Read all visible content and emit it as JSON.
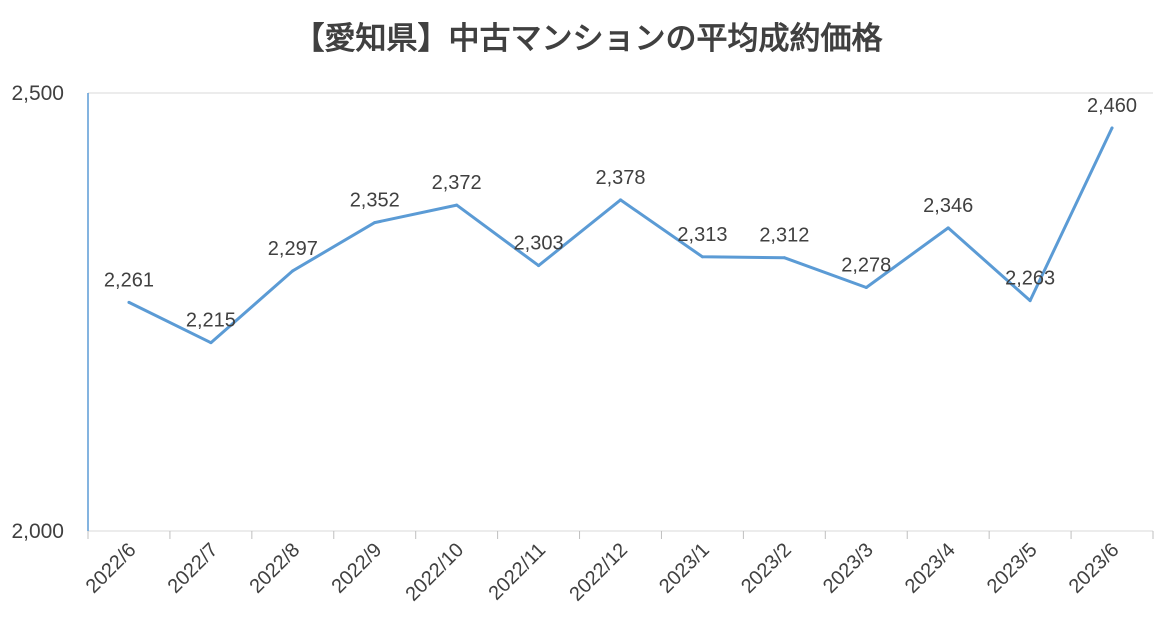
{
  "colors": {
    "series_line": "#5B9BD5",
    "axis_line": "#5B9BD5",
    "gridline": "#D9D9D9",
    "tick_mark": "#BFBFBF",
    "text": "#404040"
  },
  "chart_data": {
    "type": "line",
    "title": "【愛知県】中古マンションの平均成約価格",
    "xlabel": "",
    "ylabel": "",
    "categories": [
      "2022/6",
      "2022/7",
      "2022/8",
      "2022/9",
      "2022/10",
      "2022/11",
      "2022/12",
      "2023/1",
      "2023/2",
      "2023/3",
      "2023/4",
      "2023/5",
      "2023/6"
    ],
    "series": [
      {
        "values": [
          2261,
          2215,
          2297,
          2352,
          2372,
          2303,
          2378,
          2313,
          2312,
          2278,
          2346,
          2263,
          2460
        ]
      }
    ],
    "data_labels": [
      "2,261",
      "2,215",
      "2,297",
      "2,352",
      "2,372",
      "2,303",
      "2,378",
      "2,313",
      "2,312",
      "2,278",
      "2,346",
      "2,263",
      "2,460"
    ],
    "y_ticks": [
      2000,
      2500
    ],
    "y_tick_labels": [
      "2,000",
      "2,500"
    ],
    "ylim": [
      2000,
      2500
    ],
    "grid": true,
    "legend": "none",
    "x_tick_rotation_deg": -45
  }
}
